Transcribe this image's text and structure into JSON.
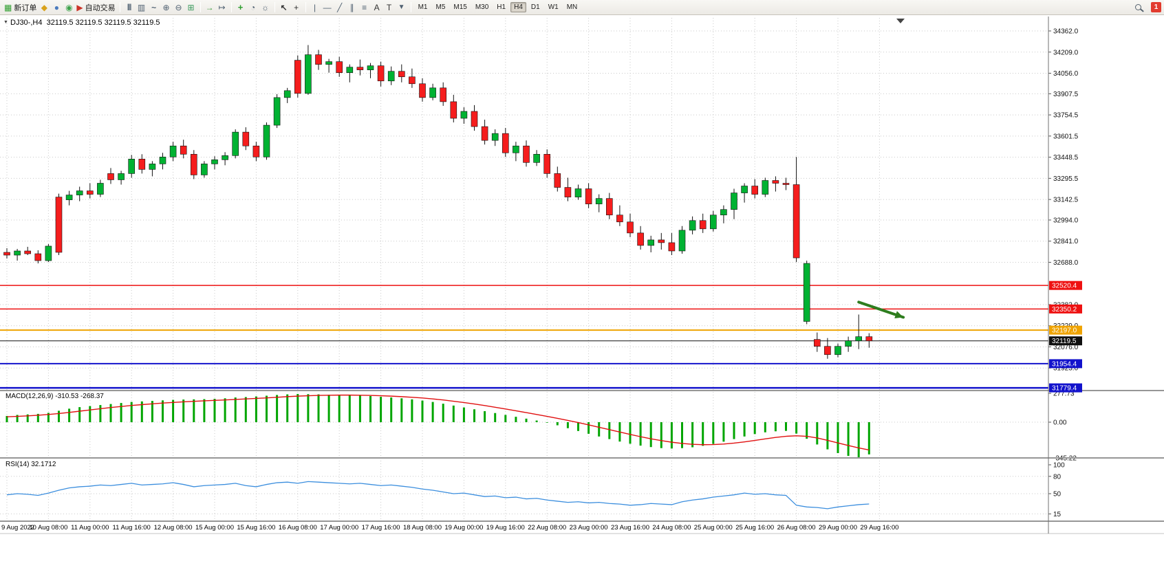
{
  "toolbar": {
    "new_order_label": "新订单",
    "auto_trading_label": "自动交易",
    "timeframes": [
      "M1",
      "M5",
      "M15",
      "M30",
      "H1",
      "H4",
      "D1",
      "W1",
      "MN"
    ],
    "active_timeframe": "H4",
    "notification_badge": "1"
  },
  "chart_header": {
    "title": "DJ30-,H4  32119.5 32119.5 32119.5 32119.5"
  },
  "chart_data": {
    "type": "candlestick",
    "symbol": "DJ30-",
    "timeframe": "H4",
    "current_price": 32119.5,
    "price_axis": {
      "ticks": [
        34362.0,
        34209.0,
        34056.0,
        33907.5,
        33754.5,
        33601.5,
        33448.5,
        33295.5,
        33142.5,
        32994.0,
        32841.0,
        32688.0,
        32382.0,
        32229.0,
        32076.0,
        31923.0
      ],
      "ylim": [
        31760,
        34430
      ]
    },
    "x_labels": [
      "9 Aug 2022",
      "10 Aug 08:00",
      "11 Aug 00:00",
      "11 Aug 16:00",
      "12 Aug 08:00",
      "15 Aug 00:00",
      "15 Aug 16:00",
      "16 Aug 08:00",
      "17 Aug 00:00",
      "17 Aug 16:00",
      "18 Aug 08:00",
      "19 Aug 00:00",
      "19 Aug 16:00",
      "22 Aug 08:00",
      "23 Aug 00:00",
      "23 Aug 16:00",
      "24 Aug 08:00",
      "25 Aug 00:00",
      "25 Aug 16:00",
      "26 Aug 08:00",
      "29 Aug 00:00",
      "29 Aug 16:00"
    ],
    "candles": [
      [
        32760,
        32790,
        32715,
        32740
      ],
      [
        32740,
        32785,
        32700,
        32770
      ],
      [
        32770,
        32800,
        32740,
        32750
      ],
      [
        32750,
        32775,
        32680,
        32700
      ],
      [
        32700,
        32820,
        32690,
        32805
      ],
      [
        33160,
        33185,
        32740,
        32760
      ],
      [
        33140,
        33205,
        33100,
        33175
      ],
      [
        33175,
        33235,
        33130,
        33205
      ],
      [
        33205,
        33260,
        33150,
        33180
      ],
      [
        33180,
        33285,
        33160,
        33260
      ],
      [
        33330,
        33370,
        33255,
        33285
      ],
      [
        33285,
        33350,
        33250,
        33330
      ],
      [
        33330,
        33465,
        33300,
        33435
      ],
      [
        33435,
        33470,
        33330,
        33360
      ],
      [
        33360,
        33420,
        33310,
        33400
      ],
      [
        33400,
        33480,
        33360,
        33450
      ],
      [
        33450,
        33560,
        33420,
        33530
      ],
      [
        33530,
        33575,
        33440,
        33470
      ],
      [
        33470,
        33500,
        33290,
        33320
      ],
      [
        33320,
        33420,
        33300,
        33400
      ],
      [
        33400,
        33455,
        33360,
        33430
      ],
      [
        33430,
        33485,
        33390,
        33460
      ],
      [
        33460,
        33650,
        33440,
        33630
      ],
      [
        33630,
        33665,
        33500,
        33530
      ],
      [
        33530,
        33560,
        33420,
        33450
      ],
      [
        33450,
        33700,
        33430,
        33680
      ],
      [
        33680,
        33905,
        33660,
        33880
      ],
      [
        33880,
        33950,
        33840,
        33930
      ],
      [
        34150,
        34185,
        33880,
        33910
      ],
      [
        33910,
        34260,
        33900,
        34190
      ],
      [
        34190,
        34225,
        34080,
        34120
      ],
      [
        34120,
        34160,
        34060,
        34140
      ],
      [
        34140,
        34175,
        34030,
        34060
      ],
      [
        34060,
        34120,
        33990,
        34100
      ],
      [
        34100,
        34155,
        34040,
        34080
      ],
      [
        34080,
        34130,
        34020,
        34110
      ],
      [
        34110,
        34140,
        33960,
        34000
      ],
      [
        34000,
        34105,
        33970,
        34070
      ],
      [
        34070,
        34120,
        33990,
        34030
      ],
      [
        34030,
        34090,
        33950,
        33980
      ],
      [
        33980,
        34020,
        33850,
        33880
      ],
      [
        33880,
        33980,
        33860,
        33950
      ],
      [
        33950,
        33990,
        33820,
        33850
      ],
      [
        33850,
        33900,
        33700,
        33730
      ],
      [
        33730,
        33810,
        33690,
        33780
      ],
      [
        33780,
        33825,
        33640,
        33670
      ],
      [
        33670,
        33720,
        33540,
        33570
      ],
      [
        33570,
        33650,
        33530,
        33620
      ],
      [
        33620,
        33660,
        33450,
        33480
      ],
      [
        33480,
        33560,
        33420,
        33530
      ],
      [
        33530,
        33570,
        33380,
        33410
      ],
      [
        33410,
        33500,
        33385,
        33470
      ],
      [
        33470,
        33505,
        33300,
        33330
      ],
      [
        33330,
        33380,
        33200,
        33230
      ],
      [
        33230,
        33300,
        33130,
        33160
      ],
      [
        33160,
        33250,
        33140,
        33220
      ],
      [
        33220,
        33260,
        33080,
        33110
      ],
      [
        33110,
        33180,
        33050,
        33150
      ],
      [
        33150,
        33190,
        33000,
        33030
      ],
      [
        33030,
        33100,
        32950,
        32980
      ],
      [
        32980,
        33040,
        32870,
        32900
      ],
      [
        32900,
        32950,
        32780,
        32810
      ],
      [
        32810,
        32880,
        32760,
        32850
      ],
      [
        32850,
        32900,
        32780,
        32830
      ],
      [
        32830,
        32900,
        32740,
        32770
      ],
      [
        32770,
        32950,
        32750,
        32920
      ],
      [
        32920,
        33020,
        32890,
        32990
      ],
      [
        32990,
        33040,
        32900,
        32930
      ],
      [
        32930,
        33060,
        32910,
        33030
      ],
      [
        33030,
        33100,
        32970,
        33070
      ],
      [
        33070,
        33220,
        33000,
        33190
      ],
      [
        33190,
        33260,
        33120,
        33240
      ],
      [
        33240,
        33290,
        33150,
        33180
      ],
      [
        33180,
        33300,
        33160,
        33280
      ],
      [
        33280,
        33310,
        33200,
        33260
      ],
      [
        33260,
        33300,
        33210,
        33250
      ],
      [
        33250,
        33450,
        32690,
        32720
      ],
      [
        32260,
        32700,
        32240,
        32680
      ],
      [
        32130,
        32180,
        32040,
        32080
      ],
      [
        32080,
        32140,
        31990,
        32020
      ],
      [
        32020,
        32100,
        32000,
        32080
      ],
      [
        32080,
        32150,
        32040,
        32120
      ],
      [
        32120,
        32310,
        32060,
        32150
      ],
      [
        32150,
        32175,
        32070,
        32119.5
      ]
    ],
    "hlines": [
      {
        "price": 32520.4,
        "label": "32520.4",
        "color": "#EE1111",
        "w": 1.5
      },
      {
        "price": 32350.2,
        "label": "32350.2",
        "color": "#EE1111",
        "w": 1.5
      },
      {
        "price": 32197.0,
        "label": "32197.0",
        "color": "#EFA300",
        "w": 2
      },
      {
        "price": 32119.5,
        "label": "32119.5",
        "color": "#101010",
        "w": 1
      },
      {
        "price": 31954.4,
        "label": "31954.4",
        "color": "#1212CC",
        "w": 2
      },
      {
        "price": 31779.4,
        "label": "31779.4",
        "color": "#1212CC",
        "w": 2.5
      }
    ],
    "annotation_arrow": {
      "from_index": 82,
      "from_price": 32400,
      "to_index": 86.3,
      "to_price": 32290,
      "color": "#2E7D1E"
    },
    "macd": {
      "label": "MACD(12,26,9) -310.53 -268.37",
      "params": "12,26,9",
      "main_value": -310.53,
      "signal_value": -268.37,
      "ticks": [
        277.73,
        0,
        -345.22
      ],
      "hist": [
        60,
        70,
        75,
        80,
        90,
        110,
        130,
        145,
        155,
        165,
        175,
        185,
        195,
        200,
        205,
        210,
        215,
        218,
        220,
        222,
        225,
        230,
        238,
        242,
        248,
        255,
        262,
        268,
        272,
        270,
        268,
        265,
        262,
        260,
        258,
        252,
        245,
        238,
        230,
        220,
        208,
        195,
        178,
        160,
        142,
        124,
        106,
        88,
        70,
        52,
        34,
        16,
        -5,
        -30,
        -58,
        -85,
        -112,
        -138,
        -163,
        -187,
        -208,
        -226,
        -240,
        -250,
        -254,
        -250,
        -242,
        -228,
        -210,
        -188,
        -163,
        -138,
        -115,
        -98,
        -88,
        -84,
        -110,
        -160,
        -215,
        -262,
        -298,
        -325,
        -345,
        -310.53
      ],
      "signal": [
        52,
        56,
        61,
        67,
        74,
        83,
        94,
        106,
        118,
        130,
        141,
        151,
        161,
        169,
        177,
        184,
        190,
        196,
        201,
        206,
        210,
        214,
        219,
        224,
        229,
        234,
        240,
        246,
        251,
        255,
        258,
        260,
        261,
        261,
        260,
        258,
        255,
        251,
        246,
        240,
        233,
        224,
        214,
        202,
        189,
        175,
        160,
        144,
        127,
        110,
        92,
        74,
        56,
        37,
        17,
        -4,
        -26,
        -49,
        -72,
        -95,
        -118,
        -140,
        -160,
        -178,
        -193,
        -205,
        -213,
        -217,
        -216,
        -211,
        -202,
        -190,
        -176,
        -161,
        -147,
        -136,
        -131,
        -136,
        -152,
        -175,
        -200,
        -225,
        -248,
        -268.37
      ]
    },
    "rsi": {
      "label": "RSI(14) 32.1712",
      "period": 14,
      "value": 32.1712,
      "ticks": [
        100,
        80,
        50,
        15
      ],
      "levels": [
        80,
        50,
        15
      ],
      "values": [
        48,
        50,
        49,
        47,
        51,
        56,
        60,
        62,
        63,
        65,
        64,
        66,
        68,
        65,
        66,
        67,
        69,
        66,
        62,
        64,
        65,
        66,
        68,
        64,
        62,
        66,
        69,
        70,
        68,
        71,
        70,
        69,
        68,
        67,
        68,
        66,
        64,
        65,
        63,
        61,
        58,
        56,
        53,
        50,
        51,
        48,
        45,
        46,
        43,
        44,
        41,
        42,
        39,
        37,
        35,
        36,
        34,
        35,
        33,
        32,
        30,
        31,
        33,
        32,
        31,
        36,
        39,
        41,
        44,
        46,
        48,
        51,
        49,
        50,
        48,
        47,
        30,
        27,
        26,
        24,
        27,
        29,
        31,
        32.17
      ]
    },
    "colors": {
      "up": "#00B232",
      "down": "#F51D1D",
      "wick": "#111111",
      "macd_hist": "#00A500",
      "macd_signal": "#E01010",
      "rsi": "#3B8EDE",
      "grid": "#C9C9C9",
      "arrow": "#2E7D1E"
    }
  }
}
